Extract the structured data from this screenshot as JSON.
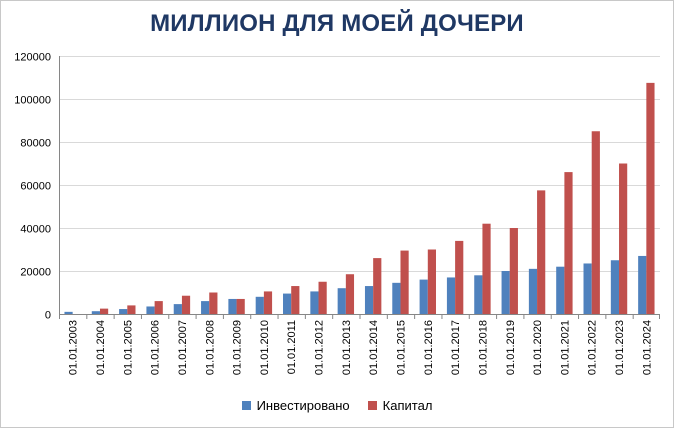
{
  "chart_data": {
    "type": "bar",
    "title": "МИЛЛИОН ДЛЯ МОЕЙ ДОЧЕРИ",
    "xlabel": "",
    "ylabel": "",
    "ylim": [
      0,
      120000
    ],
    "yticks": [
      "0",
      "20000",
      "40000",
      "60000",
      "80000",
      "100000",
      "120000"
    ],
    "grid": true,
    "legend_position": "bottom",
    "categories": [
      "01.01.2003",
      "01.01.2004",
      "01.01.2005",
      "01.01.2006",
      "01.01.2007",
      "01.01.2008",
      "01.01.2009",
      "01.01.2010",
      "01.01.2011",
      "01.01.2012",
      "01.01.2013",
      "01.01.2014",
      "01.01.2015",
      "01.01.2016",
      "01.01.2017",
      "01.01.2018",
      "01.01.2019",
      "01.01.2020",
      "01.01.2021",
      "01.01.2022",
      "01.01.2023",
      "01.01.2024"
    ],
    "series": [
      {
        "name": "Инвестировано",
        "color": "#4f81bd",
        "values": [
          1000,
          1300,
          2300,
          3500,
          4600,
          6000,
          7000,
          8000,
          9500,
          10500,
          12000,
          13000,
          14500,
          16000,
          17000,
          18000,
          20000,
          21000,
          22000,
          23500,
          25000,
          27000
        ]
      },
      {
        "name": "Капитал",
        "color": "#c0504d",
        "values": [
          0,
          2500,
          4000,
          6000,
          8500,
          10000,
          7000,
          10500,
          13000,
          15000,
          18500,
          26000,
          29500,
          30000,
          34000,
          42000,
          40000,
          57500,
          66000,
          85000,
          70000,
          107500
        ]
      }
    ]
  }
}
